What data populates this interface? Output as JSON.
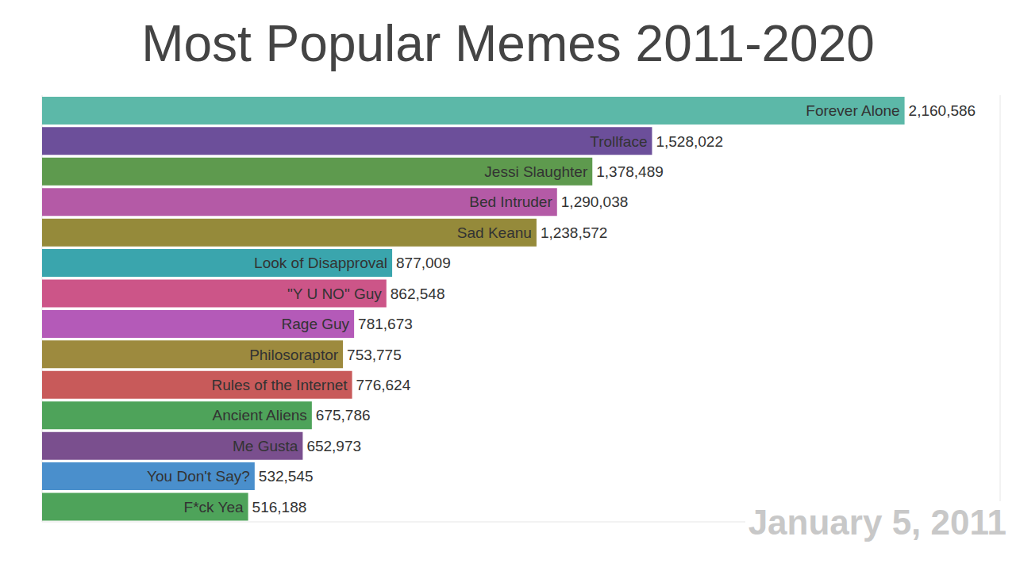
{
  "chart_data": {
    "type": "bar",
    "orientation": "horizontal",
    "title": "Most Popular Memes 2011-2020",
    "annotation": "January 5, 2011",
    "categories": [
      "Forever Alone",
      "Trollface",
      "Jessi Slaughter",
      "Bed Intruder",
      "Sad Keanu",
      "Look of Disapproval",
      "\"Y U NO\" Guy",
      "Rage Guy",
      "Philosoraptor",
      "Rules of the Internet",
      "Ancient Aliens",
      "Me Gusta",
      "You Don't Say?",
      "F*ck Yea"
    ],
    "values": [
      2160586,
      1528022,
      1378489,
      1290038,
      1238572,
      877009,
      862548,
      781673,
      753775,
      776624,
      675786,
      652973,
      532545,
      516188
    ],
    "value_labels": [
      "2,160,586",
      "1,528,022",
      "1,378,489",
      "1,290,038",
      "1,238,572",
      "877,009",
      "862,548",
      "781,673",
      "753,775",
      "776,624",
      "675,786",
      "652,973",
      "532,545",
      "516,188"
    ],
    "colors": [
      "#5cb8a8",
      "#6c4f9a",
      "#5e9a4e",
      "#b45aa6",
      "#958a3a",
      "#3aa5ad",
      "#cc5588",
      "#b45ab8",
      "#9d8a3e",
      "#c85a5a",
      "#4ea35a",
      "#7a4f8e",
      "#4a8fcc",
      "#4ea35a"
    ],
    "xlim": [
      0,
      2400000
    ],
    "xticks": [
      0,
      500000,
      1000000,
      1500000,
      2000000
    ],
    "grid": true,
    "data_labels": true,
    "tick_labels": false
  }
}
